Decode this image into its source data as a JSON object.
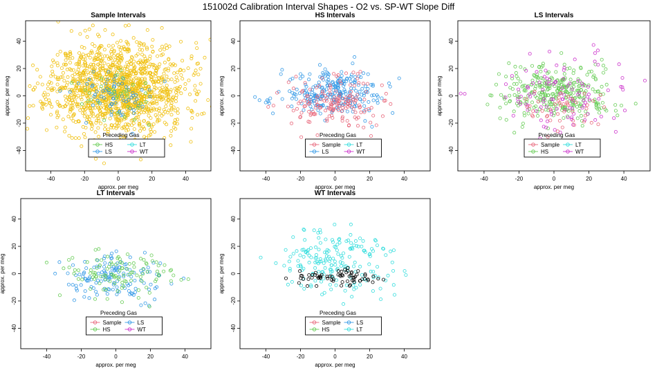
{
  "figure_title": "151002d   Calibration Interval Shapes - O2 vs. SP-WT Slope Diff",
  "colors": {
    "Sample": "#e8667a",
    "HS": "#66cc55",
    "LS": "#3399e6",
    "LT": "#33dddd",
    "WT": "#cc33cc",
    "base": "#f0c010",
    "black": "#000000"
  },
  "chart_data": [
    {
      "type": "scatter",
      "title": "Sample Intervals",
      "xlabel": "approx. per meg",
      "ylabel": "approx. per meg",
      "xlim": [
        -55,
        55
      ],
      "ylim": [
        -55,
        55
      ],
      "xticks": [
        -40,
        -20,
        0,
        20,
        40
      ],
      "yticks": [
        -40,
        -20,
        0,
        20,
        40
      ],
      "legend": {
        "title": "Preceding Gas",
        "position": "bottom-center",
        "entries": [
          "HS",
          "LT",
          "LS",
          "WT"
        ]
      },
      "series": [
        {
          "name": "Sample",
          "color_key": "base",
          "n": 1400,
          "cx": 0,
          "cy": 5,
          "sx": 20,
          "sy": 17,
          "seed": 11
        },
        {
          "name": "LS",
          "color_key": "LS",
          "n": 70,
          "cx": 0,
          "cy": 0,
          "sx": 13,
          "sy": 9,
          "seed": 12
        },
        {
          "name": "HS",
          "color_key": "HS",
          "n": 35,
          "cx": 0,
          "cy": 0,
          "sx": 12,
          "sy": 9,
          "seed": 13
        }
      ]
    },
    {
      "type": "scatter",
      "title": "HS Intervals",
      "xlabel": "approx. per meg",
      "ylabel": "approx. per meg",
      "xlim": [
        -55,
        55
      ],
      "ylim": [
        -55,
        55
      ],
      "xticks": [
        -40,
        -20,
        0,
        20,
        40
      ],
      "yticks": [
        -40,
        -20,
        0,
        20,
        40
      ],
      "legend": {
        "title": "Preceding Gas",
        "position": "bottom-center",
        "entries": [
          "Sample",
          "LT",
          "LS",
          "WT"
        ]
      },
      "series": [
        {
          "name": "LS",
          "color_key": "LS",
          "n": 260,
          "cx": 0,
          "cy": 2,
          "sx": 15,
          "sy": 8,
          "seed": 21
        },
        {
          "name": "Sample",
          "color_key": "Sample",
          "n": 170,
          "cx": 0,
          "cy": -5,
          "sx": 13,
          "sy": 9,
          "seed": 22
        }
      ]
    },
    {
      "type": "scatter",
      "title": "LS Intervals",
      "xlabel": "approx. per meg",
      "ylabel": "approx. per meg",
      "xlim": [
        -55,
        55
      ],
      "ylim": [
        -55,
        55
      ],
      "xticks": [
        -40,
        -20,
        0,
        20,
        40
      ],
      "yticks": [
        -40,
        -20,
        0,
        20,
        40
      ],
      "legend": {
        "title": "Preceding Gas",
        "position": "bottom-center",
        "entries": [
          "Sample",
          "LT",
          "HS",
          "WT"
        ]
      },
      "series": [
        {
          "name": "HS",
          "color_key": "HS",
          "n": 320,
          "cx": 0,
          "cy": 2,
          "sx": 17,
          "sy": 10,
          "seed": 31
        },
        {
          "name": "WT",
          "color_key": "WT",
          "n": 110,
          "cx": 2,
          "cy": 2,
          "sx": 20,
          "sy": 15,
          "seed": 32
        },
        {
          "name": "Sample",
          "color_key": "Sample",
          "n": 45,
          "cx": 5,
          "cy": -12,
          "sx": 11,
          "sy": 8,
          "seed": 33
        }
      ]
    },
    {
      "type": "scatter",
      "title": "LT Intervals",
      "xlabel": "approx. per meg",
      "ylabel": "approx. per meg",
      "xlim": [
        -55,
        55
      ],
      "ylim": [
        -55,
        55
      ],
      "xticks": [
        -40,
        -20,
        0,
        20,
        40
      ],
      "yticks": [
        -40,
        -20,
        0,
        20,
        40
      ],
      "legend": {
        "title": "Preceding Gas",
        "position": "bottom-center",
        "entries": [
          "Sample",
          "LS",
          "HS",
          "WT"
        ]
      },
      "series": [
        {
          "name": "LS",
          "color_key": "LS",
          "n": 140,
          "cx": 0,
          "cy": -3,
          "sx": 15,
          "sy": 8,
          "seed": 41
        },
        {
          "name": "HS",
          "color_key": "HS",
          "n": 110,
          "cx": 0,
          "cy": 0,
          "sx": 17,
          "sy": 9,
          "seed": 42
        }
      ]
    },
    {
      "type": "scatter",
      "title": "WT Intervals",
      "xlabel": "approx. per meg",
      "ylabel": "approx. per meg",
      "xlim": [
        -55,
        55
      ],
      "ylim": [
        -55,
        55
      ],
      "xticks": [
        -40,
        -20,
        0,
        20,
        40
      ],
      "yticks": [
        -40,
        -20,
        0,
        20,
        40
      ],
      "legend": {
        "title": "Preceding Gas",
        "position": "bottom-center",
        "entries": [
          "Sample",
          "LS",
          "HS",
          "LT"
        ]
      },
      "series": [
        {
          "name": "LT",
          "color_key": "LT",
          "n": 190,
          "cx": 0,
          "cy": 8,
          "sx": 17,
          "sy": 13,
          "seed": 51
        },
        {
          "name": "Sample",
          "color_key": "black",
          "n": 70,
          "cx": 2,
          "cy": -3,
          "sx": 12,
          "sy": 3,
          "seed": 52
        }
      ]
    }
  ]
}
